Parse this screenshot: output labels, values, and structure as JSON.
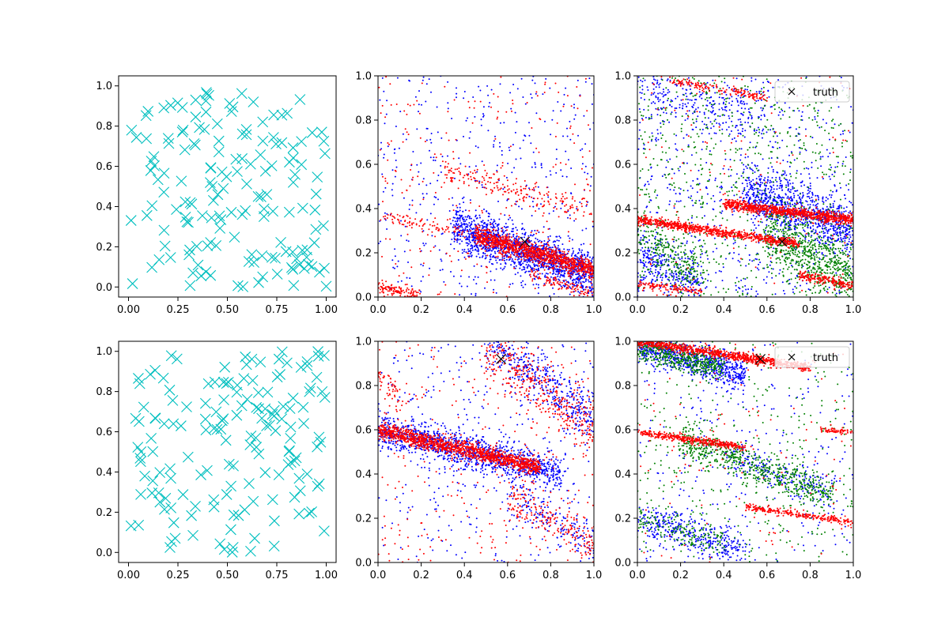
{
  "chart_data": [
    {
      "type": "scatter",
      "panel": "top-left",
      "xlim": [
        -0.05,
        1.05
      ],
      "ylim": [
        -0.05,
        1.05
      ],
      "xticks": [
        "0.00",
        "0.25",
        "0.50",
        "0.75",
        "1.00"
      ],
      "yticks": [
        "0.0",
        "0.2",
        "0.4",
        "0.6",
        "0.8",
        "1.0"
      ],
      "grid": false,
      "series": [
        {
          "color": "#00bfbf",
          "marker": "x-large",
          "count": 160,
          "distribution": "uniform"
        }
      ]
    },
    {
      "type": "scatter",
      "panel": "top-middle",
      "xlim": [
        0,
        1
      ],
      "ylim": [
        0,
        1
      ],
      "xticks": [
        "0.0",
        "0.2",
        "0.4",
        "0.6",
        "0.8",
        "1.0"
      ],
      "yticks": [
        "0.0",
        "0.2",
        "0.4",
        "0.6",
        "0.8",
        "1.0"
      ],
      "grid": false,
      "truth_point": {
        "x": 0.68,
        "y": 0.25
      },
      "series": [
        {
          "color": "#0000ff",
          "marker": "dot",
          "bands": [
            {
              "x0": 0.35,
              "y0": 0.32,
              "x1": 1.0,
              "y1": 0.09,
              "spread": 0.05,
              "count": 1500
            }
          ],
          "noise": 450
        },
        {
          "color": "#ff0000",
          "marker": "dot",
          "bands": [
            {
              "x0": 0.45,
              "y0": 0.28,
              "x1": 1.0,
              "y1": 0.12,
              "spread": 0.022,
              "count": 1100
            },
            {
              "x0": 0.0,
              "y0": 0.37,
              "x1": 0.45,
              "y1": 0.28,
              "spread": 0.012,
              "count": 90
            },
            {
              "x0": 0.3,
              "y0": 0.58,
              "x1": 1.0,
              "y1": 0.38,
              "spread": 0.03,
              "count": 200
            },
            {
              "x0": 0.0,
              "y0": 0.05,
              "x1": 0.2,
              "y1": 0.0,
              "spread": 0.015,
              "count": 120
            },
            {
              "x0": 0.7,
              "y0": 0.1,
              "x1": 1.0,
              "y1": 0.02,
              "spread": 0.015,
              "count": 100
            }
          ],
          "noise": 250
        }
      ]
    },
    {
      "type": "scatter",
      "panel": "top-right",
      "xlim": [
        0,
        1
      ],
      "ylim": [
        0,
        1
      ],
      "xticks": [
        "0.0",
        "0.2",
        "0.4",
        "0.6",
        "0.8",
        "1.0"
      ],
      "yticks": [
        "0.0",
        "0.2",
        "0.4",
        "0.6",
        "0.8",
        "1.0"
      ],
      "grid": false,
      "legend": {
        "label": "truth",
        "position": "top-right"
      },
      "truth_point": {
        "x": 0.67,
        "y": 0.25
      },
      "series": [
        {
          "color": "#0000ff",
          "marker": "dot",
          "bands": [
            {
              "x0": 0.5,
              "y0": 0.48,
              "x1": 1.0,
              "y1": 0.3,
              "spread": 0.06,
              "count": 900
            },
            {
              "x0": 0.0,
              "y0": 0.2,
              "x1": 0.3,
              "y1": 0.05,
              "spread": 0.06,
              "count": 300
            },
            {
              "x0": 0.0,
              "y0": 0.95,
              "x1": 0.6,
              "y1": 0.8,
              "spread": 0.06,
              "count": 250
            }
          ],
          "noise": 650
        },
        {
          "color": "#008000",
          "marker": "dot",
          "bands": [
            {
              "x0": 0.6,
              "y0": 0.3,
              "x1": 1.0,
              "y1": 0.08,
              "spread": 0.07,
              "count": 650
            },
            {
              "x0": 0.0,
              "y0": 0.3,
              "x1": 0.3,
              "y1": 0.1,
              "spread": 0.06,
              "count": 250
            }
          ],
          "noise": 750
        },
        {
          "color": "#ff0000",
          "marker": "dot",
          "bands": [
            {
              "x0": 0.0,
              "y0": 0.35,
              "x1": 0.75,
              "y1": 0.24,
              "spread": 0.01,
              "count": 800
            },
            {
              "x0": 0.4,
              "y0": 0.42,
              "x1": 1.0,
              "y1": 0.35,
              "spread": 0.012,
              "count": 900
            },
            {
              "x0": 0.0,
              "y0": 0.06,
              "x1": 0.3,
              "y1": 0.02,
              "spread": 0.01,
              "count": 120
            },
            {
              "x0": 0.75,
              "y0": 0.1,
              "x1": 1.0,
              "y1": 0.05,
              "spread": 0.01,
              "count": 200
            },
            {
              "x0": 0.15,
              "y0": 0.98,
              "x1": 0.6,
              "y1": 0.9,
              "spread": 0.01,
              "count": 150
            }
          ],
          "noise": 120
        }
      ]
    },
    {
      "type": "scatter",
      "panel": "bottom-left",
      "xlim": [
        -0.05,
        1.05
      ],
      "ylim": [
        -0.05,
        1.05
      ],
      "xticks": [
        "0.00",
        "0.25",
        "0.50",
        "0.75",
        "1.00"
      ],
      "yticks": [
        "0.0",
        "0.2",
        "0.4",
        "0.6",
        "0.8",
        "1.0"
      ],
      "grid": false,
      "series": [
        {
          "color": "#00bfbf",
          "marker": "x-large",
          "count": 160,
          "distribution": "uniform"
        }
      ]
    },
    {
      "type": "scatter",
      "panel": "bottom-middle",
      "xlim": [
        0,
        1
      ],
      "ylim": [
        0,
        1
      ],
      "xticks": [
        "0.0",
        "0.2",
        "0.4",
        "0.6",
        "0.8",
        "1.0"
      ],
      "yticks": [
        "0.0",
        "0.2",
        "0.4",
        "0.6",
        "0.8",
        "1.0"
      ],
      "grid": false,
      "truth_point": {
        "x": 0.57,
        "y": 0.92
      },
      "series": [
        {
          "color": "#0000ff",
          "marker": "dot",
          "bands": [
            {
              "x0": 0.0,
              "y0": 0.6,
              "x1": 0.85,
              "y1": 0.4,
              "spread": 0.04,
              "count": 1200
            },
            {
              "x0": 0.5,
              "y0": 1.0,
              "x1": 1.0,
              "y1": 0.65,
              "spread": 0.06,
              "count": 400
            },
            {
              "x0": 0.6,
              "y0": 0.3,
              "x1": 1.0,
              "y1": 0.1,
              "spread": 0.05,
              "count": 150
            }
          ],
          "noise": 350
        },
        {
          "color": "#ff0000",
          "marker": "dot",
          "bands": [
            {
              "x0": 0.0,
              "y0": 0.6,
              "x1": 0.75,
              "y1": 0.43,
              "spread": 0.018,
              "count": 1300
            },
            {
              "x0": 0.5,
              "y0": 0.98,
              "x1": 1.0,
              "y1": 0.6,
              "spread": 0.06,
              "count": 350
            },
            {
              "x0": 0.6,
              "y0": 0.3,
              "x1": 1.0,
              "y1": 0.1,
              "spread": 0.05,
              "count": 200
            },
            {
              "x0": 0.0,
              "y0": 0.85,
              "x1": 0.1,
              "y1": 0.75,
              "spread": 0.03,
              "count": 50
            }
          ],
          "noise": 300
        }
      ]
    },
    {
      "type": "scatter",
      "panel": "bottom-right",
      "xlim": [
        0,
        1
      ],
      "ylim": [
        0,
        1
      ],
      "xticks": [
        "0.0",
        "0.2",
        "0.4",
        "0.6",
        "0.8",
        "1.0"
      ],
      "yticks": [
        "0.0",
        "0.2",
        "0.4",
        "0.6",
        "0.8",
        "1.0"
      ],
      "grid": false,
      "legend": {
        "label": "truth",
        "position": "top-right"
      },
      "truth_point": {
        "x": 0.57,
        "y": 0.92
      },
      "series": [
        {
          "color": "#0000ff",
          "marker": "dot",
          "bands": [
            {
              "x0": 0.0,
              "y0": 0.98,
              "x1": 0.5,
              "y1": 0.85,
              "spread": 0.035,
              "count": 700
            },
            {
              "x0": 0.0,
              "y0": 0.2,
              "x1": 0.5,
              "y1": 0.05,
              "spread": 0.04,
              "count": 350
            },
            {
              "x0": 0.4,
              "y0": 0.5,
              "x1": 0.9,
              "y1": 0.3,
              "spread": 0.04,
              "count": 200
            }
          ],
          "noise": 300
        },
        {
          "color": "#008000",
          "marker": "dot",
          "bands": [
            {
              "x0": 0.0,
              "y0": 0.97,
              "x1": 0.4,
              "y1": 0.88,
              "spread": 0.03,
              "count": 450
            },
            {
              "x0": 0.2,
              "y0": 0.55,
              "x1": 0.9,
              "y1": 0.3,
              "spread": 0.04,
              "count": 600
            },
            {
              "x0": 0.0,
              "y0": 0.2,
              "x1": 0.4,
              "y1": 0.08,
              "spread": 0.04,
              "count": 150
            }
          ],
          "noise": 400
        },
        {
          "color": "#ff0000",
          "marker": "dot",
          "bands": [
            {
              "x0": 0.0,
              "y0": 1.0,
              "x1": 0.8,
              "y1": 0.88,
              "spread": 0.01,
              "count": 900
            },
            {
              "x0": 0.0,
              "y0": 0.59,
              "x1": 0.5,
              "y1": 0.52,
              "spread": 0.008,
              "count": 400
            },
            {
              "x0": 0.5,
              "y0": 0.25,
              "x1": 1.0,
              "y1": 0.18,
              "spread": 0.008,
              "count": 250
            },
            {
              "x0": 0.85,
              "y0": 0.6,
              "x1": 1.0,
              "y1": 0.59,
              "spread": 0.006,
              "count": 60
            }
          ],
          "noise": 120
        }
      ]
    }
  ]
}
